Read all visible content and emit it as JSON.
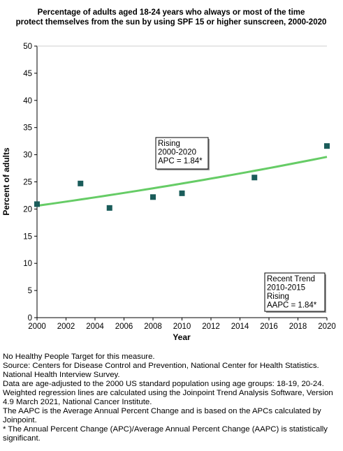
{
  "chart_data": {
    "type": "scatter",
    "title_lines": [
      "Percentage of adults aged 18-24 years who always or most of the time",
      "protect themselves from the sun by using SPF 15 or higher sunscreen, 2000-2020"
    ],
    "xlabel": "Year",
    "ylabel": "Percent of adults",
    "xlim": [
      2000,
      2020
    ],
    "ylim": [
      0,
      50
    ],
    "x_ticks": [
      "2000",
      "2002",
      "2004",
      "2006",
      "2008",
      "2010",
      "2012",
      "2014",
      "2016",
      "2018",
      "2020"
    ],
    "y_ticks": [
      "0",
      "5",
      "10",
      "15",
      "20",
      "25",
      "30",
      "35",
      "40",
      "45",
      "50"
    ],
    "grid": false,
    "points": [
      {
        "x": 2000,
        "y": 20.9
      },
      {
        "x": 2003,
        "y": 24.7
      },
      {
        "x": 2005,
        "y": 20.2
      },
      {
        "x": 2008,
        "y": 22.2
      },
      {
        "x": 2010,
        "y": 22.9
      },
      {
        "x": 2015,
        "y": 25.8
      },
      {
        "x": 2020,
        "y": 31.6
      }
    ],
    "trend": {
      "start": {
        "x": 2000,
        "y": 20.6
      },
      "end": {
        "x": 2020,
        "y": 29.6
      },
      "apc_percent": 1.84
    },
    "annotations": [
      {
        "lines": [
          "Rising",
          "2000-2020",
          "APC =  1.84*"
        ]
      },
      {
        "lines": [
          "Recent Trend",
          "2010-2015",
          "Rising",
          "AAPC =  1.84*"
        ]
      }
    ],
    "colors": {
      "points": "#1a5c5a",
      "trend": "#66cc66",
      "axis": "#000000"
    }
  },
  "footnotes": [
    "No Healthy People Target for this measure.",
    "Source: Centers for Disease Control and Prevention, National Center for Health Statistics. National Health Interview Survey.",
    "Data are age-adjusted to the 2000 US standard population using age groups: 18-19, 20-24.",
    "Weighted regression lines are calculated using the Joinpoint Trend Analysis Software, Version 4.9 March 2021, National Cancer Institute.",
    "The AAPC is the Average Annual Percent Change and is based on the APCs calculated by Joinpoint.",
    "* The Annual Percent Change (APC)/Average Annual Percent Change (AAPC) is statistically significant."
  ]
}
